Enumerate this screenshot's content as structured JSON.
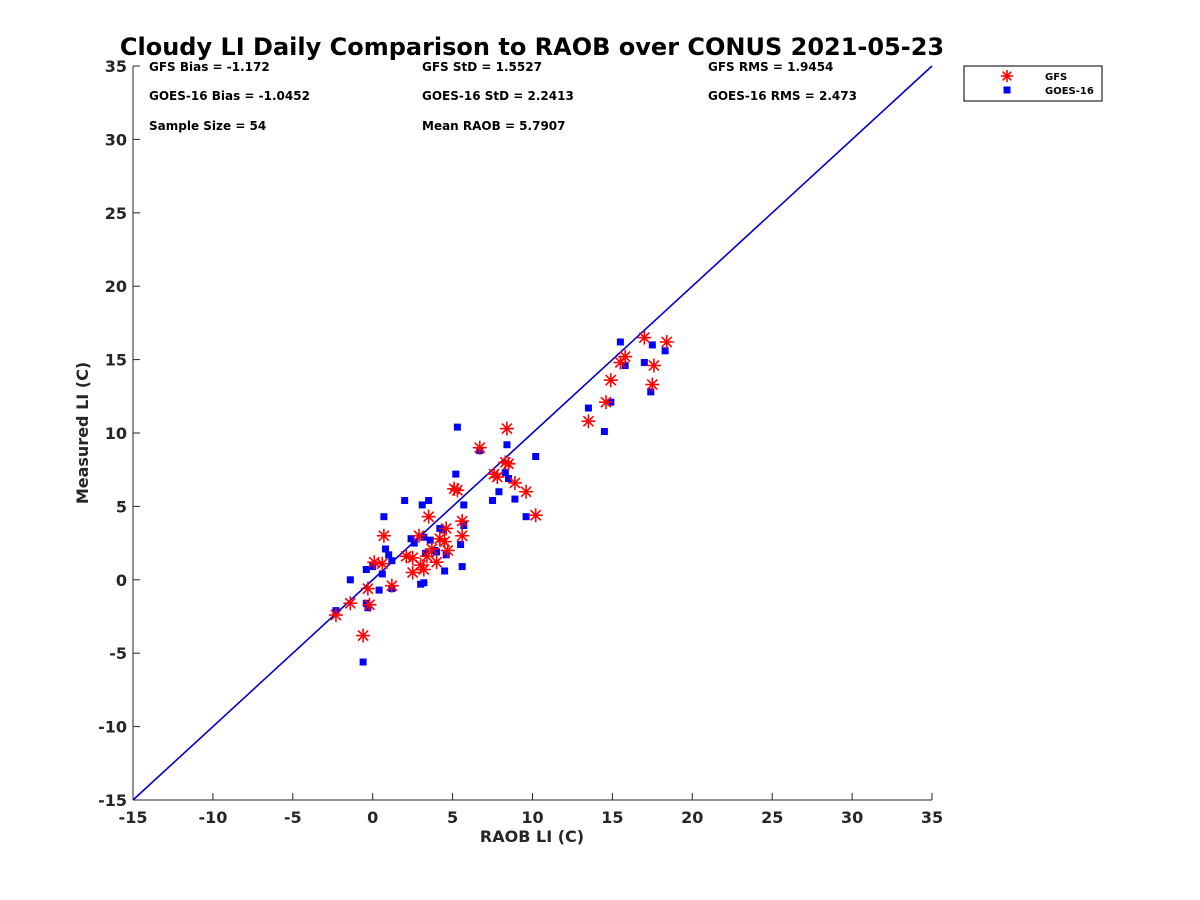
{
  "chart_data": {
    "type": "scatter",
    "title": "Cloudy LI Daily Comparison to RAOB over CONUS 2021-05-23",
    "xlabel": "RAOB LI (C)",
    "ylabel": "Measured LI (C)",
    "xlim": [
      -15,
      35
    ],
    "ylim": [
      -15,
      35
    ],
    "xticks": [
      "-15",
      "-10",
      "-5",
      "0",
      "5",
      "10",
      "15",
      "20",
      "25",
      "30",
      "35"
    ],
    "yticks": [
      "-15",
      "-10",
      "-5",
      "0",
      "5",
      "10",
      "15",
      "20",
      "25",
      "30",
      "35"
    ],
    "grid": false,
    "legend_position": "top-right outside",
    "reference_line": {
      "from": [
        -15,
        -15
      ],
      "to": [
        35,
        35
      ],
      "color": "#0000cc"
    },
    "stats": [
      [
        "GFS Bias = -1.172",
        "GFS StD = 1.5527",
        "GFS RMS = 1.9454"
      ],
      [
        "GOES-16 Bias = -1.0452",
        "GOES-16 StD = 2.2413",
        "GOES-16 RMS = 2.473"
      ],
      [
        "Sample Size = 54",
        "Mean RAOB = 5.7907",
        ""
      ]
    ],
    "series": [
      {
        "name": "GFS",
        "marker": "asterisk",
        "color": "#ff0000",
        "points": [
          [
            -2.3,
            -2.4
          ],
          [
            -1.4,
            -1.6
          ],
          [
            -0.6,
            -3.8
          ],
          [
            -0.3,
            -0.6
          ],
          [
            -0.2,
            -1.7
          ],
          [
            0.1,
            1.2
          ],
          [
            0.6,
            1.1
          ],
          [
            0.7,
            3.0
          ],
          [
            1.2,
            -0.4
          ],
          [
            2.1,
            1.6
          ],
          [
            2.5,
            1.5
          ],
          [
            2.5,
            0.5
          ],
          [
            2.9,
            3.0
          ],
          [
            3.0,
            1.0
          ],
          [
            3.2,
            0.7
          ],
          [
            3.4,
            1.6
          ],
          [
            3.5,
            4.3
          ],
          [
            3.7,
            2.1
          ],
          [
            4.0,
            1.2
          ],
          [
            4.2,
            2.8
          ],
          [
            4.5,
            2.6
          ],
          [
            4.6,
            3.5
          ],
          [
            4.7,
            2.0
          ],
          [
            5.1,
            6.2
          ],
          [
            5.3,
            6.1
          ],
          [
            5.6,
            4.0
          ],
          [
            5.6,
            3.0
          ],
          [
            6.7,
            9.0
          ],
          [
            7.6,
            7.2
          ],
          [
            7.8,
            7.0
          ],
          [
            8.3,
            8.0
          ],
          [
            8.4,
            10.3
          ],
          [
            8.5,
            7.9
          ],
          [
            8.9,
            6.6
          ],
          [
            9.6,
            6.0
          ],
          [
            10.2,
            4.4
          ],
          [
            13.5,
            10.8
          ],
          [
            14.6,
            12.1
          ],
          [
            14.9,
            13.6
          ],
          [
            15.5,
            14.8
          ],
          [
            15.8,
            15.2
          ],
          [
            17.0,
            16.5
          ],
          [
            17.5,
            13.3
          ],
          [
            17.6,
            14.6
          ],
          [
            18.4,
            16.2
          ]
        ]
      },
      {
        "name": "GOES-16",
        "marker": "square",
        "color": "#0000ff",
        "points": [
          [
            -2.3,
            -2.1
          ],
          [
            -1.4,
            0.0
          ],
          [
            -0.6,
            -5.6
          ],
          [
            -0.4,
            -1.6
          ],
          [
            -0.4,
            0.7
          ],
          [
            -0.3,
            -1.9
          ],
          [
            0.0,
            0.9
          ],
          [
            0.4,
            -0.7
          ],
          [
            0.6,
            0.4
          ],
          [
            0.7,
            4.3
          ],
          [
            0.8,
            2.1
          ],
          [
            1.0,
            1.7
          ],
          [
            1.2,
            -0.6
          ],
          [
            1.2,
            1.3
          ],
          [
            2.0,
            5.4
          ],
          [
            2.4,
            2.8
          ],
          [
            2.6,
            2.5
          ],
          [
            3.0,
            -0.3
          ],
          [
            3.1,
            5.1
          ],
          [
            3.2,
            2.9
          ],
          [
            3.2,
            -0.2
          ],
          [
            3.3,
            1.8
          ],
          [
            3.5,
            5.4
          ],
          [
            3.6,
            2.7
          ],
          [
            3.9,
            2.0
          ],
          [
            4.0,
            1.9
          ],
          [
            4.2,
            3.5
          ],
          [
            4.4,
            3.4
          ],
          [
            4.5,
            0.6
          ],
          [
            4.6,
            1.7
          ],
          [
            5.2,
            7.2
          ],
          [
            5.3,
            10.4
          ],
          [
            5.5,
            2.4
          ],
          [
            5.6,
            0.9
          ],
          [
            5.7,
            5.1
          ],
          [
            5.7,
            3.7
          ],
          [
            6.7,
            8.8
          ],
          [
            7.5,
            5.4
          ],
          [
            7.9,
            6.0
          ],
          [
            8.3,
            7.3
          ],
          [
            8.4,
            9.2
          ],
          [
            8.5,
            6.9
          ],
          [
            8.9,
            5.5
          ],
          [
            9.6,
            4.3
          ],
          [
            10.2,
            8.4
          ],
          [
            13.5,
            11.7
          ],
          [
            14.5,
            10.1
          ],
          [
            14.9,
            12.1
          ],
          [
            15.5,
            16.2
          ],
          [
            15.8,
            14.6
          ],
          [
            17.0,
            14.8
          ],
          [
            17.4,
            12.8
          ],
          [
            17.5,
            16.0
          ],
          [
            18.3,
            15.6
          ]
        ]
      }
    ]
  }
}
